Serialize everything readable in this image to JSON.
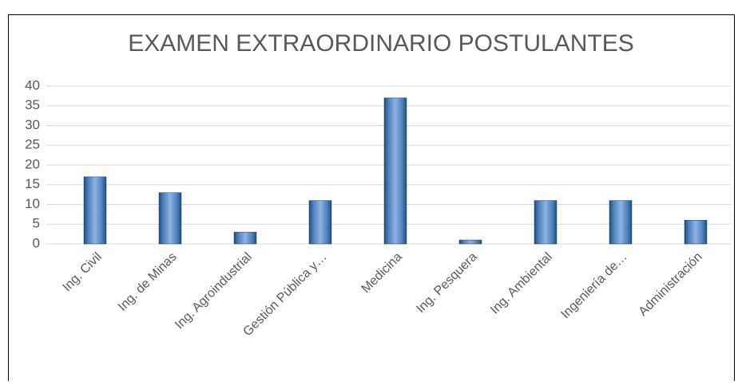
{
  "chart_data": {
    "type": "bar",
    "title": "EXAMEN EXTRAORDINARIO POSTULANTES",
    "categories": [
      "Ing. Civil",
      "Ing. de Minas",
      "Ing. Agroindustrial",
      "Gestión Pública y…",
      "Medicina",
      "Ing. Pesquera",
      "Ing. Ambiental",
      "Ingeniería de…",
      "Administración"
    ],
    "values": [
      17,
      13,
      3,
      11,
      37,
      1,
      11,
      11,
      6
    ],
    "color": "#4f81bd",
    "ylim": [
      0,
      40
    ],
    "yticks": [
      0,
      5,
      10,
      15,
      20,
      25,
      30,
      35,
      40
    ],
    "grid": true
  }
}
